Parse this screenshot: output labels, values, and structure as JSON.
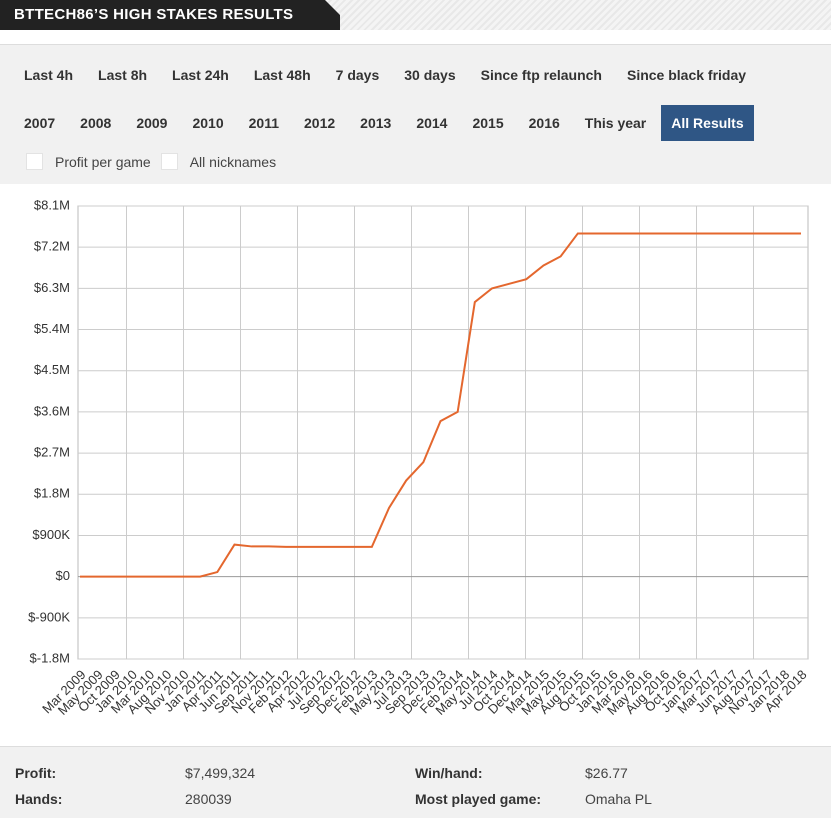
{
  "header": {
    "title": "BTTECH86’S HIGH STAKES RESULTS"
  },
  "filters": {
    "row1": [
      "Last 4h",
      "Last 8h",
      "Last 24h",
      "Last 48h",
      "7 days",
      "30 days",
      "Since ftp relaunch",
      "Since black friday"
    ],
    "row2": [
      "2007",
      "2008",
      "2009",
      "2010",
      "2011",
      "2012",
      "2013",
      "2014",
      "2015",
      "2016",
      "This year",
      "All Results"
    ]
  },
  "options": [
    "Profit per game",
    "All nicknames"
  ],
  "chart_data": {
    "type": "line",
    "categories": [
      "Mar 2009",
      "May 2009",
      "Oct 2009",
      "Jan 2010",
      "Mar 2010",
      "Aug 2010",
      "Nov 2010",
      "Jan 2011",
      "Apr 2011",
      "Jun 2011",
      "Sep 2011",
      "Nov 2011",
      "Feb 2012",
      "Apr 2012",
      "Jul 2012",
      "Sep 2012",
      "Dec 2012",
      "Feb 2013",
      "May 2013",
      "Jul 2013",
      "Sep 2013",
      "Dec 2013",
      "Feb 2014",
      "May 2014",
      "Jul 2014",
      "Oct 2014",
      "Dec 2014",
      "Mar 2015",
      "May 2015",
      "Aug 2015",
      "Oct 2015",
      "Jan 2016",
      "Mar 2016",
      "May 2016",
      "Aug 2016",
      "Oct 2016",
      "Jan 2017",
      "Mar 2017",
      "Jun 2017",
      "Aug 2017",
      "Nov 2017",
      "Jan 2018",
      "Apr 2018"
    ],
    "values": [
      0,
      0,
      0,
      0,
      0,
      0,
      0,
      0,
      100000,
      700000,
      660000,
      660000,
      650000,
      650000,
      650000,
      650000,
      650000,
      650000,
      1500000,
      2100000,
      2500000,
      3400000,
      3600000,
      6000000,
      6300000,
      6400000,
      6500000,
      6800000,
      7000000,
      7500000,
      7500000,
      7500000,
      7500000,
      7500000,
      7500000,
      7500000,
      7500000,
      7500000,
      7500000,
      7500000,
      7500000,
      7500000,
      7500000
    ],
    "color": "#e4672e",
    "ylim": [
      -1800000,
      8100000
    ],
    "yticks": [
      {
        "value": -1800000,
        "label": "$-1.8M"
      },
      {
        "value": -900000,
        "label": "$-900K"
      },
      {
        "value": 0,
        "label": "$0"
      },
      {
        "value": 900000,
        "label": "$900K"
      },
      {
        "value": 1800000,
        "label": "$1.8M"
      },
      {
        "value": 2700000,
        "label": "$2.7M"
      },
      {
        "value": 3600000,
        "label": "$3.6M"
      },
      {
        "value": 4500000,
        "label": "$4.5M"
      },
      {
        "value": 5400000,
        "label": "$5.4M"
      },
      {
        "value": 6300000,
        "label": "$6.3M"
      },
      {
        "value": 7200000,
        "label": "$7.2M"
      },
      {
        "value": 8100000,
        "label": "$8.1M"
      }
    ],
    "grid": true
  },
  "stats": [
    {
      "label": "Profit:",
      "value": "$7,499,324"
    },
    {
      "label": "Win/hand:",
      "value": "$26.77"
    },
    {
      "label": "Hands:",
      "value": "280039"
    },
    {
      "label": "Most played game:",
      "value": "Omaha PL"
    }
  ]
}
